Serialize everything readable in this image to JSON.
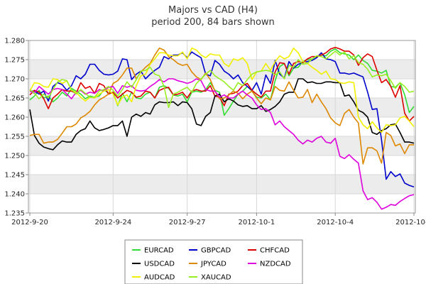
{
  "chart_data": {
    "type": "line",
    "title": "Majors vs CAD (H4)",
    "subtitle": "period 200, 84 bars shown",
    "xlabel": "",
    "ylabel": "",
    "x_count": 84,
    "ylim": [
      1.235,
      1.28
    ],
    "y_ticks": [
      "1.235",
      "1.240",
      "1.245",
      "1.250",
      "1.255",
      "1.260",
      "1.265",
      "1.270",
      "1.275",
      "1.280"
    ],
    "x_ticks": [
      {
        "label": "2012-9-20",
        "index": 0
      },
      {
        "label": "2012-9-24",
        "index": 18
      },
      {
        "label": "2012-9-27",
        "index": 34
      },
      {
        "label": "2012-10-1",
        "index": 49
      },
      {
        "label": "2012-10-4",
        "index": 66
      },
      {
        "label": "2012-10-8",
        "index": 83
      }
    ],
    "grid": true,
    "legend_position": "bottom",
    "series": [
      {
        "name": "EURCAD",
        "color": "#33dd33",
        "values": [
          1.2645,
          1.2655,
          1.267,
          1.265,
          1.2655,
          1.264,
          1.265,
          1.2665,
          1.2655,
          1.2675,
          1.2668,
          1.266,
          1.2648,
          1.2655,
          1.2652,
          1.2655,
          1.2672,
          1.2662,
          1.2665,
          1.263,
          1.2662,
          1.264,
          1.2665,
          1.265,
          1.2648,
          1.266,
          1.2665,
          1.265,
          1.2678,
          1.2682,
          1.2675,
          1.2658,
          1.2655,
          1.266,
          1.264,
          1.2665,
          1.2668,
          1.2665,
          1.2672,
          1.269,
          1.267,
          1.2665,
          1.2605,
          1.2622,
          1.2642,
          1.266,
          1.2668,
          1.268,
          1.2668,
          1.2652,
          1.265,
          1.266,
          1.2645,
          1.2695,
          1.2732,
          1.274,
          1.2708,
          1.2728,
          1.273,
          1.2745,
          1.275,
          1.2752,
          1.2758,
          1.2762,
          1.276,
          1.2772,
          1.2778,
          1.2768,
          1.2765,
          1.2762,
          1.275,
          1.2762,
          1.2748,
          1.274,
          1.2722,
          1.272,
          1.2715,
          1.2722,
          1.268,
          1.2678,
          1.269,
          1.2658,
          1.2612,
          1.2628
        ]
      },
      {
        "name": "GBPCAD",
        "color": "#0000cc",
        "values": [
          1.2668,
          1.2668,
          1.266,
          1.2668,
          1.2642,
          1.268,
          1.269,
          1.2685,
          1.267,
          1.2682,
          1.2708,
          1.27,
          1.2712,
          1.2738,
          1.2738,
          1.2722,
          1.2712,
          1.271,
          1.2712,
          1.272,
          1.2752,
          1.275,
          1.2698,
          1.2712,
          1.272,
          1.27,
          1.2712,
          1.2722,
          1.273,
          1.2758,
          1.2752,
          1.2762,
          1.2762,
          1.2768,
          1.2755,
          1.277,
          1.2762,
          1.2755,
          1.2712,
          1.2708,
          1.2748,
          1.2738,
          1.272,
          1.2712,
          1.27,
          1.271,
          1.269,
          1.268,
          1.267,
          1.269,
          1.266,
          1.271,
          1.2688,
          1.2748,
          1.2712,
          1.2702,
          1.2745,
          1.2728,
          1.2738,
          1.2742,
          1.2745,
          1.2748,
          1.2755,
          1.2768,
          1.2752,
          1.275,
          1.2745,
          1.2715,
          1.2715,
          1.2712,
          1.2715,
          1.271,
          1.2705,
          1.2665,
          1.262,
          1.2622,
          1.254,
          1.2438,
          1.2458,
          1.2445,
          1.2452,
          1.2428,
          1.2422,
          1.2418
        ]
      },
      {
        "name": "CHFCAD",
        "color": "#dd0000",
        "values": [
          1.2658,
          1.267,
          1.2665,
          1.2648,
          1.2622,
          1.265,
          1.266,
          1.2672,
          1.2668,
          1.2668,
          1.2662,
          1.269,
          1.2675,
          1.268,
          1.2662,
          1.2688,
          1.2682,
          1.266,
          1.2665,
          1.265,
          1.266,
          1.267,
          1.2665,
          1.2652,
          1.2655,
          1.2668,
          1.2665,
          1.265,
          1.267,
          1.2675,
          1.2678,
          1.2658,
          1.266,
          1.2665,
          1.265,
          1.2668,
          1.2672,
          1.2668,
          1.2668,
          1.2682,
          1.2655,
          1.2652,
          1.263,
          1.266,
          1.2662,
          1.2668,
          1.2682,
          1.2688,
          1.267,
          1.266,
          1.2652,
          1.2668,
          1.2668,
          1.2718,
          1.2742,
          1.274,
          1.2712,
          1.274,
          1.2745,
          1.2742,
          1.2752,
          1.2758,
          1.2758,
          1.2762,
          1.2768,
          1.2778,
          1.2782,
          1.2778,
          1.2772,
          1.2772,
          1.2762,
          1.2735,
          1.2755,
          1.2765,
          1.2758,
          1.2722,
          1.269,
          1.2698,
          1.268,
          1.2652,
          1.2682,
          1.261,
          1.259,
          1.2602
        ]
      },
      {
        "name": "USDCAD",
        "color": "#000000",
        "values": [
          1.262,
          1.2552,
          1.2532,
          1.2522,
          1.2518,
          1.2515,
          1.2528,
          1.2538,
          1.2535,
          1.2535,
          1.2555,
          1.2565,
          1.257,
          1.259,
          1.2572,
          1.2565,
          1.2568,
          1.2572,
          1.2578,
          1.2578,
          1.259,
          1.255,
          1.26,
          1.2608,
          1.2602,
          1.2612,
          1.2608,
          1.2632,
          1.264,
          1.2638,
          1.2638,
          1.264,
          1.263,
          1.264,
          1.2638,
          1.2622,
          1.2582,
          1.2578,
          1.2602,
          1.2612,
          1.2655,
          1.266,
          1.264,
          1.2648,
          1.2642,
          1.2632,
          1.2628,
          1.263,
          1.2622,
          1.2622,
          1.263,
          1.2615,
          1.262,
          1.2628,
          1.264,
          1.266,
          1.2665,
          1.2665,
          1.27,
          1.27,
          1.269,
          1.2692,
          1.2688,
          1.2688,
          1.2692,
          1.2692,
          1.269,
          1.269,
          1.2655,
          1.2658,
          1.264,
          1.2618,
          1.2612,
          1.26,
          1.256,
          1.2555,
          1.2565,
          1.257,
          1.258,
          1.2582,
          1.256,
          1.2535,
          1.2535,
          1.2532
        ]
      },
      {
        "name": "JPYCAD",
        "color": "#dd8800",
        "values": [
          1.2552,
          1.2555,
          1.2555,
          1.2532,
          1.2535,
          1.2535,
          1.2542,
          1.2558,
          1.2575,
          1.2575,
          1.2582,
          1.2598,
          1.2605,
          1.2615,
          1.2632,
          1.2645,
          1.2652,
          1.266,
          1.2688,
          1.2695,
          1.271,
          1.2728,
          1.2728,
          1.27,
          1.2718,
          1.273,
          1.274,
          1.2762,
          1.278,
          1.2775,
          1.2758,
          1.275,
          1.274,
          1.2735,
          1.2738,
          1.2718,
          1.2705,
          1.2698,
          1.2715,
          1.2698,
          1.2668,
          1.2648,
          1.265,
          1.2658,
          1.2668,
          1.2662,
          1.2648,
          1.266,
          1.2668,
          1.265,
          1.2635,
          1.265,
          1.2645,
          1.268,
          1.267,
          1.2668,
          1.2692,
          1.267,
          1.265,
          1.2652,
          1.2672,
          1.2638,
          1.266,
          1.264,
          1.2622,
          1.2598,
          1.2585,
          1.2578,
          1.261,
          1.262,
          1.26,
          1.2585,
          1.2478,
          1.252,
          1.252,
          1.2512,
          1.248,
          1.256,
          1.2552,
          1.2525,
          1.253,
          1.2505,
          1.2528,
          1.2528
        ]
      },
      {
        "name": "NZDCAD",
        "color": "#dd00dd",
        "values": [
          1.2668,
          1.2662,
          1.268,
          1.267,
          1.266,
          1.2672,
          1.2675,
          1.2672,
          1.266,
          1.2648,
          1.2665,
          1.267,
          1.266,
          1.2665,
          1.2662,
          1.2672,
          1.2668,
          1.2678,
          1.268,
          1.2662,
          1.2682,
          1.2678,
          1.2682,
          1.267,
          1.2668,
          1.267,
          1.268,
          1.2688,
          1.2698,
          1.2692,
          1.27,
          1.27,
          1.2695,
          1.2692,
          1.2688,
          1.2692,
          1.27,
          1.2695,
          1.2672,
          1.2668,
          1.2668,
          1.2652,
          1.2658,
          1.265,
          1.265,
          1.266,
          1.2668,
          1.2658,
          1.265,
          1.2632,
          1.262,
          1.2622,
          1.2612,
          1.258,
          1.259,
          1.2575,
          1.2565,
          1.2555,
          1.254,
          1.253,
          1.254,
          1.2535,
          1.2545,
          1.255,
          1.2535,
          1.2532,
          1.2545,
          1.2498,
          1.2492,
          1.2502,
          1.249,
          1.248,
          1.2408,
          1.2385,
          1.239,
          1.2378,
          1.236,
          1.2365,
          1.2372,
          1.237,
          1.238,
          1.2388,
          1.2395,
          1.2398
        ]
      },
      {
        "name": "AUDCAD",
        "color": "#f0f000",
        "values": [
          1.2668,
          1.269,
          1.2688,
          1.268,
          1.2678,
          1.27,
          1.2698,
          1.2688,
          1.2695,
          1.267,
          1.2665,
          1.2652,
          1.2642,
          1.2652,
          1.265,
          1.266,
          1.2668,
          1.2672,
          1.266,
          1.2632,
          1.2652,
          1.2658,
          1.264,
          1.2682,
          1.2708,
          1.2712,
          1.2738,
          1.2752,
          1.2768,
          1.2768,
          1.2762,
          1.276,
          1.276,
          1.277,
          1.2752,
          1.278,
          1.2775,
          1.2762,
          1.2755,
          1.2765,
          1.2762,
          1.2762,
          1.274,
          1.2732,
          1.2752,
          1.2748,
          1.2755,
          1.274,
          1.2698,
          1.2718,
          1.272,
          1.274,
          1.2722,
          1.2745,
          1.276,
          1.2752,
          1.2758,
          1.278,
          1.2768,
          1.2745,
          1.274,
          1.273,
          1.2722,
          1.2712,
          1.272,
          1.27,
          1.2698,
          1.269,
          1.2688,
          1.2692,
          1.269,
          1.26,
          1.258,
          1.257,
          1.2588,
          1.2572,
          1.256,
          1.258,
          1.2578,
          1.258,
          1.2598,
          1.2602,
          1.259,
          1.2575
        ]
      },
      {
        "name": "XAUCAD",
        "color": "#99ee22",
        "values": [
          1.2672,
          1.2662,
          1.2648,
          1.266,
          1.265,
          1.2672,
          1.2692,
          1.2698,
          1.2695,
          1.2672,
          1.266,
          1.2672,
          1.2662,
          1.2652,
          1.2652,
          1.2668,
          1.2672,
          1.268,
          1.267,
          1.2655,
          1.2672,
          1.2692,
          1.2678,
          1.2698,
          1.272,
          1.2722,
          1.273,
          1.2712,
          1.2708,
          1.268,
          1.2625,
          1.266,
          1.2665,
          1.2672,
          1.2678,
          1.2665,
          1.2688,
          1.27,
          1.2712,
          1.2722,
          1.2708,
          1.27,
          1.2692,
          1.268,
          1.267,
          1.269,
          1.2682,
          1.2698,
          1.2712,
          1.2718,
          1.272,
          1.2722,
          1.272,
          1.271,
          1.2718,
          1.27,
          1.2735,
          1.273,
          1.275,
          1.2738,
          1.274,
          1.2752,
          1.276,
          1.2758,
          1.2752,
          1.2762,
          1.2772,
          1.2762,
          1.277,
          1.2752,
          1.276,
          1.2742,
          1.2738,
          1.2725,
          1.2705,
          1.271,
          1.2708,
          1.2712,
          1.2695,
          1.2675,
          1.269,
          1.268,
          1.2665,
          1.2668
        ]
      }
    ]
  }
}
